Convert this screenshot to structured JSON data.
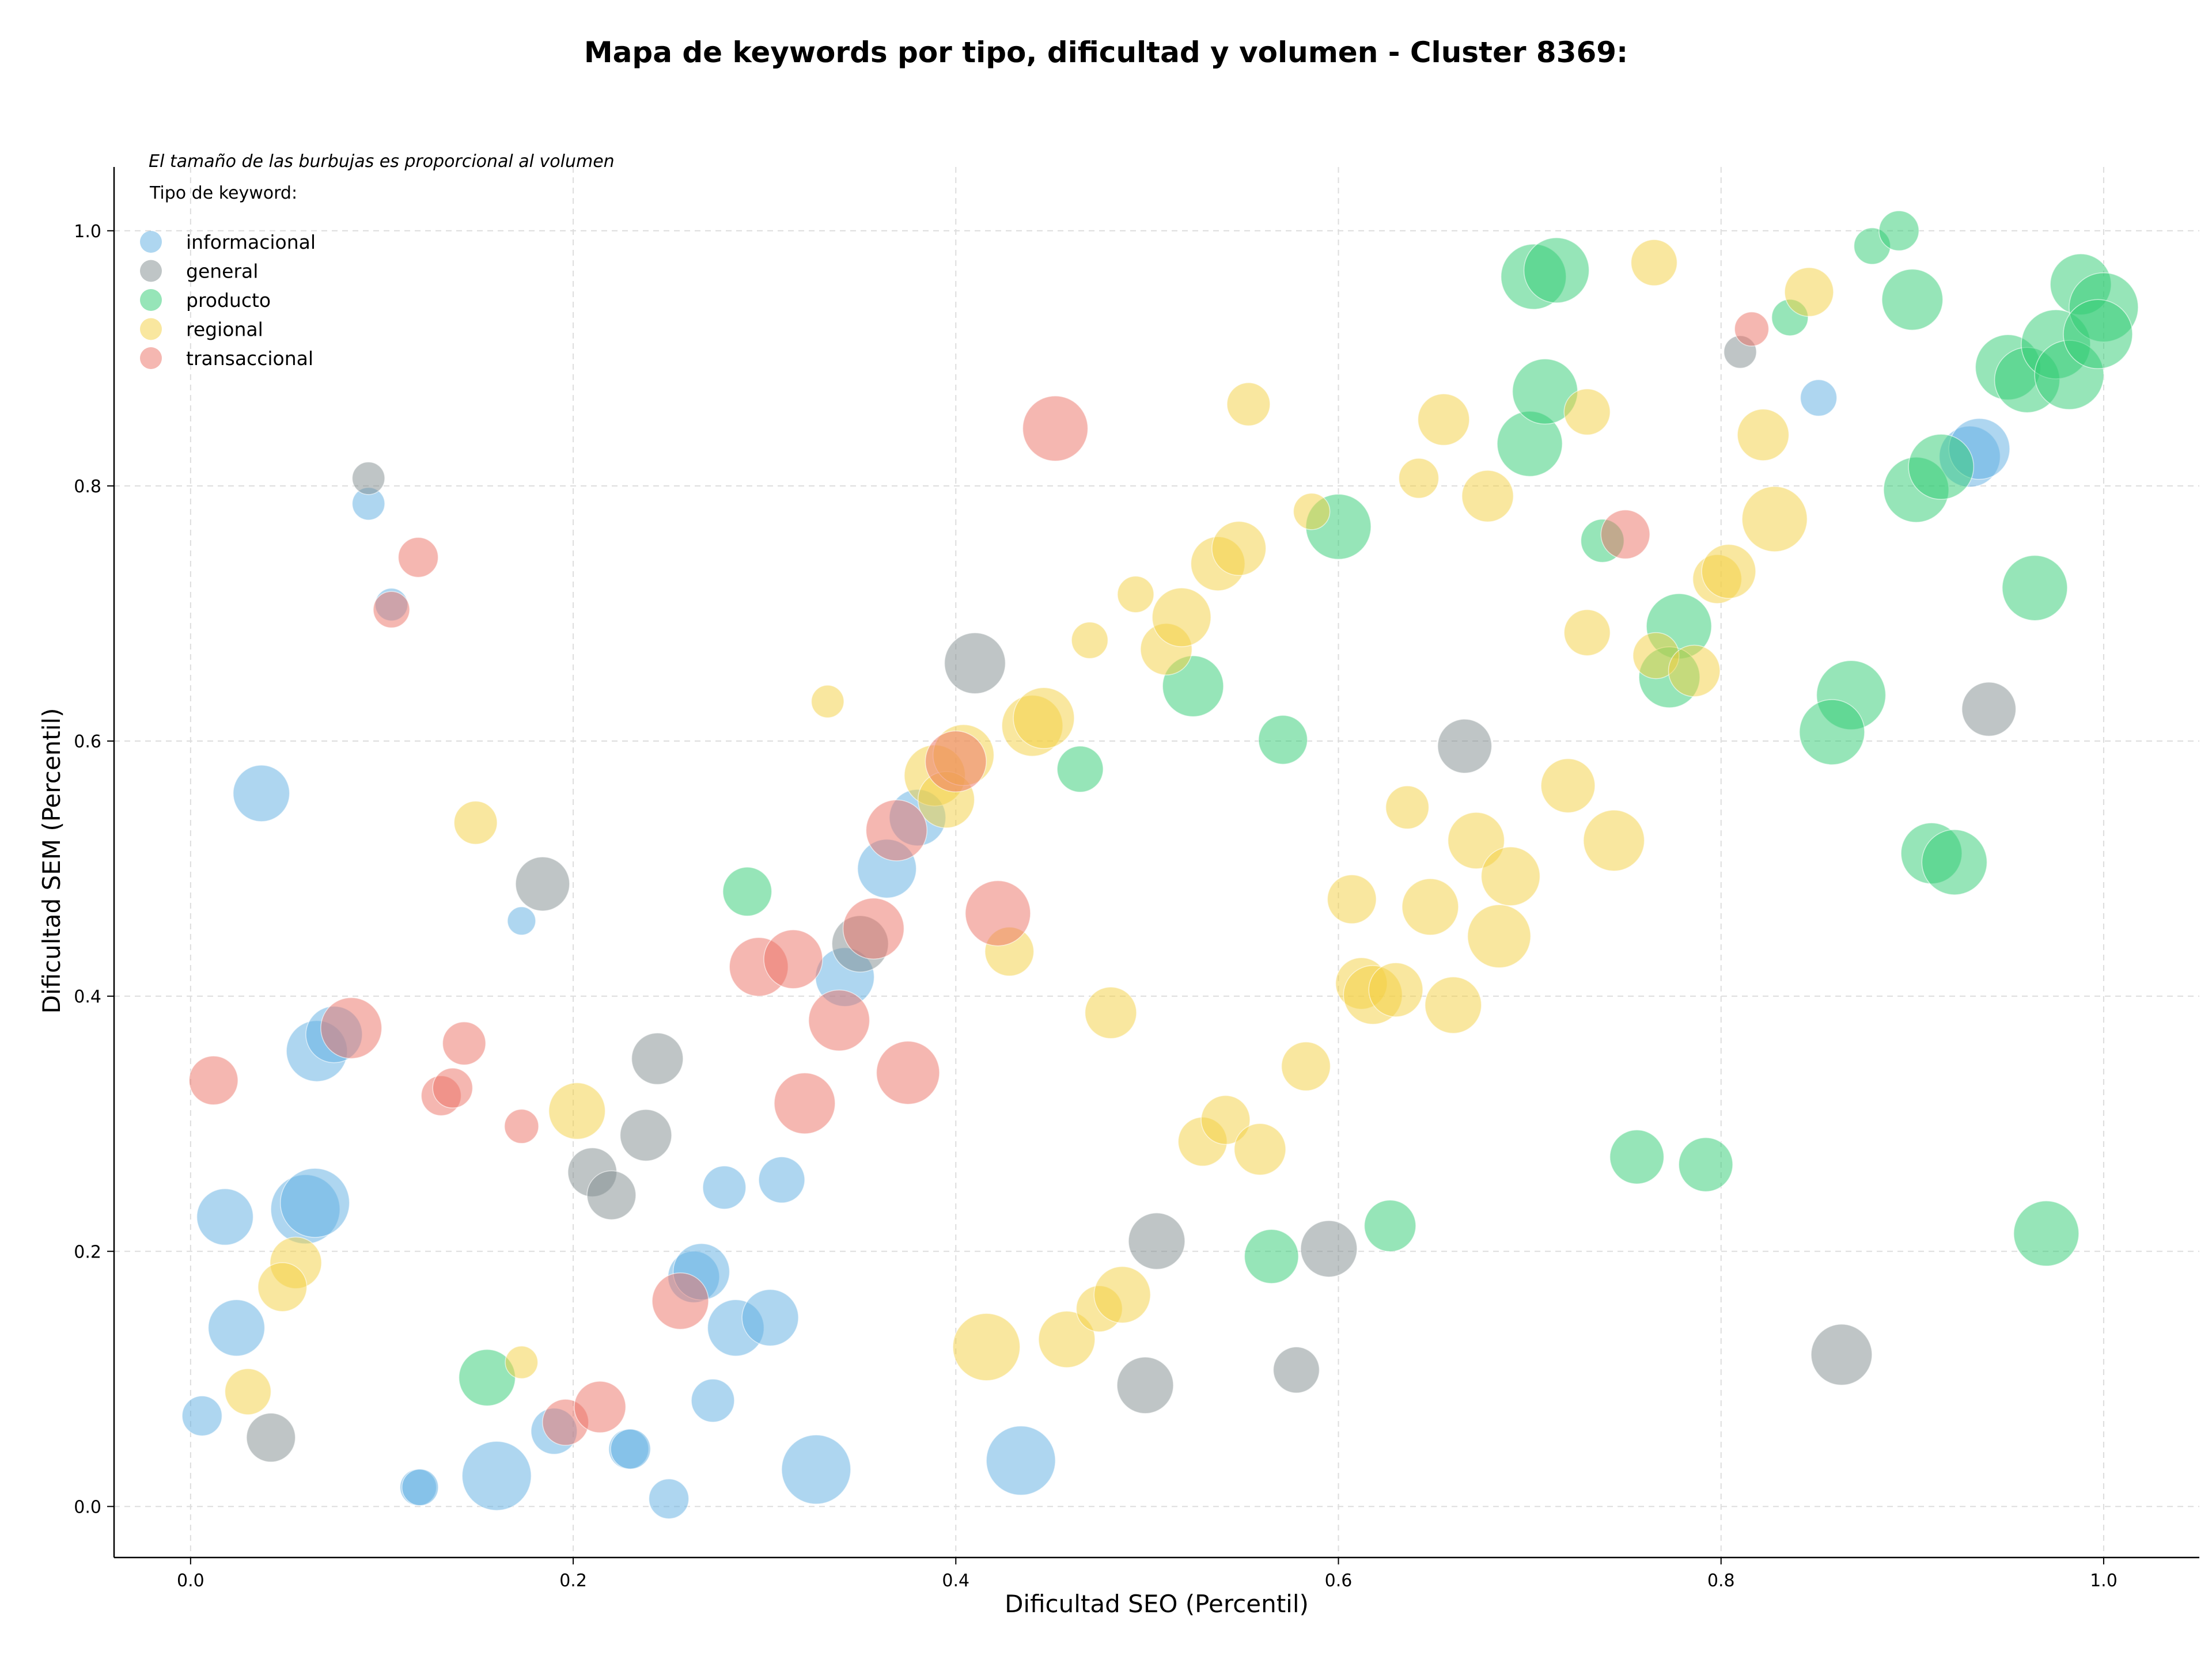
{
  "chart_data": {
    "type": "scatter",
    "title": "Mapa de keywords por tipo, dificultad y volumen - Cluster 8369:",
    "xlabel": "Dificultad SEO (Percentil)",
    "ylabel": "Dificultad SEM (Percentil)",
    "xlim": [
      -0.04,
      1.05
    ],
    "ylim": [
      -0.04,
      1.05
    ],
    "xticks": [
      "0.0",
      "0.2",
      "0.4",
      "0.6",
      "0.8",
      "1.0"
    ],
    "yticks": [
      "0.0",
      "0.2",
      "0.4",
      "0.6",
      "0.8",
      "1.0"
    ],
    "grid": true,
    "grid_style": "dashed",
    "note": "El tamaño de las burbujas es proporcional al volumen",
    "legend_title": "Tipo de keyword:",
    "legend_position": "top-left",
    "size_encoding": "volumen (relative bubble size 1-10)",
    "series": [
      {
        "name": "informacional",
        "color": "#5DADE2",
        "points": [
          {
            "x": 0.037,
            "y": 0.559,
            "s": 6
          },
          {
            "x": 0.093,
            "y": 0.786,
            "s": 2
          },
          {
            "x": 0.105,
            "y": 0.707,
            "s": 2
          },
          {
            "x": 0.173,
            "y": 0.459,
            "s": 1.5
          },
          {
            "x": 0.066,
            "y": 0.357,
            "s": 7
          },
          {
            "x": 0.075,
            "y": 0.37,
            "s": 6
          },
          {
            "x": 0.018,
            "y": 0.227,
            "s": 6
          },
          {
            "x": 0.06,
            "y": 0.233,
            "s": 9
          },
          {
            "x": 0.065,
            "y": 0.238,
            "s": 9
          },
          {
            "x": 0.024,
            "y": 0.14,
            "s": 6
          },
          {
            "x": 0.006,
            "y": 0.071,
            "s": 3
          },
          {
            "x": 0.119,
            "y": 0.015,
            "s": 2.5
          },
          {
            "x": 0.12,
            "y": 0.015,
            "s": 2.5
          },
          {
            "x": 0.16,
            "y": 0.024,
            "s": 9
          },
          {
            "x": 0.19,
            "y": 0.059,
            "s": 4
          },
          {
            "x": 0.229,
            "y": 0.045,
            "s": 3
          },
          {
            "x": 0.23,
            "y": 0.045,
            "s": 3
          },
          {
            "x": 0.25,
            "y": 0.006,
            "s": 3
          },
          {
            "x": 0.273,
            "y": 0.083,
            "s": 3.5
          },
          {
            "x": 0.279,
            "y": 0.25,
            "s": 3.5
          },
          {
            "x": 0.309,
            "y": 0.256,
            "s": 4
          },
          {
            "x": 0.263,
            "y": 0.18,
            "s": 5
          },
          {
            "x": 0.267,
            "y": 0.184,
            "s": 6
          },
          {
            "x": 0.285,
            "y": 0.14,
            "s": 6
          },
          {
            "x": 0.303,
            "y": 0.148,
            "s": 6
          },
          {
            "x": 0.327,
            "y": 0.029,
            "s": 9
          },
          {
            "x": 0.434,
            "y": 0.036,
            "s": 9
          },
          {
            "x": 0.342,
            "y": 0.415,
            "s": 6.5
          },
          {
            "x": 0.364,
            "y": 0.5,
            "s": 6.5
          },
          {
            "x": 0.38,
            "y": 0.54,
            "s": 6
          },
          {
            "x": 0.851,
            "y": 0.869,
            "s": 2.5
          },
          {
            "x": 0.93,
            "y": 0.823,
            "s": 7
          },
          {
            "x": 0.935,
            "y": 0.829,
            "s": 7
          }
        ]
      },
      {
        "name": "general",
        "color": "#7F8C8D",
        "points": [
          {
            "x": 0.093,
            "y": 0.806,
            "s": 2
          },
          {
            "x": 0.184,
            "y": 0.488,
            "s": 5.5
          },
          {
            "x": 0.244,
            "y": 0.351,
            "s": 5
          },
          {
            "x": 0.238,
            "y": 0.291,
            "s": 5
          },
          {
            "x": 0.21,
            "y": 0.262,
            "s": 4.5
          },
          {
            "x": 0.22,
            "y": 0.244,
            "s": 4.5
          },
          {
            "x": 0.042,
            "y": 0.054,
            "s": 4.5
          },
          {
            "x": 0.41,
            "y": 0.661,
            "s": 7
          },
          {
            "x": 0.35,
            "y": 0.441,
            "s": 6
          },
          {
            "x": 0.505,
            "y": 0.208,
            "s": 6
          },
          {
            "x": 0.499,
            "y": 0.095,
            "s": 6
          },
          {
            "x": 0.578,
            "y": 0.107,
            "s": 4
          },
          {
            "x": 0.595,
            "y": 0.202,
            "s": 6
          },
          {
            "x": 0.666,
            "y": 0.596,
            "s": 5.5
          },
          {
            "x": 0.81,
            "y": 0.905,
            "s": 2
          },
          {
            "x": 0.94,
            "y": 0.625,
            "s": 5.5
          },
          {
            "x": 0.863,
            "y": 0.119,
            "s": 7
          }
        ]
      },
      {
        "name": "producto",
        "color": "#2ECC71",
        "points": [
          {
            "x": 0.291,
            "y": 0.482,
            "s": 4.5
          },
          {
            "x": 0.155,
            "y": 0.101,
            "s": 6
          },
          {
            "x": 0.465,
            "y": 0.578,
            "s": 4
          },
          {
            "x": 0.524,
            "y": 0.643,
            "s": 7
          },
          {
            "x": 0.571,
            "y": 0.601,
            "s": 4.5
          },
          {
            "x": 0.6,
            "y": 0.768,
            "s": 8
          },
          {
            "x": 0.627,
            "y": 0.22,
            "s": 5
          },
          {
            "x": 0.565,
            "y": 0.196,
            "s": 5.5
          },
          {
            "x": 0.7,
            "y": 0.833,
            "s": 8
          },
          {
            "x": 0.708,
            "y": 0.874,
            "s": 8
          },
          {
            "x": 0.702,
            "y": 0.964,
            "s": 8
          },
          {
            "x": 0.714,
            "y": 0.969,
            "s": 8
          },
          {
            "x": 0.738,
            "y": 0.757,
            "s": 3.5
          },
          {
            "x": 0.778,
            "y": 0.69,
            "s": 8
          },
          {
            "x": 0.773,
            "y": 0.65,
            "s": 7
          },
          {
            "x": 0.756,
            "y": 0.274,
            "s": 5.5
          },
          {
            "x": 0.792,
            "y": 0.268,
            "s": 5.5
          },
          {
            "x": 0.836,
            "y": 0.932,
            "s": 2.5
          },
          {
            "x": 0.879,
            "y": 0.988,
            "s": 2.5
          },
          {
            "x": 0.893,
            "y": 1.0,
            "s": 3
          },
          {
            "x": 0.9,
            "y": 0.946,
            "s": 7
          },
          {
            "x": 0.868,
            "y": 0.636,
            "s": 9
          },
          {
            "x": 0.858,
            "y": 0.607,
            "s": 8
          },
          {
            "x": 0.902,
            "y": 0.797,
            "s": 8
          },
          {
            "x": 0.915,
            "y": 0.815,
            "s": 8
          },
          {
            "x": 0.91,
            "y": 0.512,
            "s": 7
          },
          {
            "x": 0.922,
            "y": 0.505,
            "s": 8
          },
          {
            "x": 0.95,
            "y": 0.893,
            "s": 8
          },
          {
            "x": 0.96,
            "y": 0.883,
            "s": 8
          },
          {
            "x": 0.988,
            "y": 0.958,
            "s": 7
          },
          {
            "x": 0.975,
            "y": 0.911,
            "s": 9
          },
          {
            "x": 0.982,
            "y": 0.887,
            "s": 9
          },
          {
            "x": 1.0,
            "y": 0.94,
            "s": 9
          },
          {
            "x": 0.997,
            "y": 0.919,
            "s": 9
          },
          {
            "x": 0.964,
            "y": 0.72,
            "s": 8
          },
          {
            "x": 0.97,
            "y": 0.214,
            "s": 8
          }
        ]
      },
      {
        "name": "regional",
        "color": "#F4D03F",
        "points": [
          {
            "x": 0.149,
            "y": 0.536,
            "s": 3.5
          },
          {
            "x": 0.055,
            "y": 0.191,
            "s": 5
          },
          {
            "x": 0.048,
            "y": 0.172,
            "s": 4.5
          },
          {
            "x": 0.03,
            "y": 0.09,
            "s": 4
          },
          {
            "x": 0.173,
            "y": 0.113,
            "s": 2
          },
          {
            "x": 0.202,
            "y": 0.31,
            "s": 6
          },
          {
            "x": 0.333,
            "y": 0.631,
            "s": 2
          },
          {
            "x": 0.389,
            "y": 0.573,
            "s": 7
          },
          {
            "x": 0.395,
            "y": 0.554,
            "s": 6
          },
          {
            "x": 0.404,
            "y": 0.589,
            "s": 7
          },
          {
            "x": 0.44,
            "y": 0.612,
            "s": 7
          },
          {
            "x": 0.446,
            "y": 0.618,
            "s": 7
          },
          {
            "x": 0.428,
            "y": 0.435,
            "s": 4.5
          },
          {
            "x": 0.47,
            "y": 0.679,
            "s": 2.5
          },
          {
            "x": 0.494,
            "y": 0.715,
            "s": 2.5
          },
          {
            "x": 0.481,
            "y": 0.387,
            "s": 5
          },
          {
            "x": 0.51,
            "y": 0.672,
            "s": 5
          },
          {
            "x": 0.518,
            "y": 0.697,
            "s": 6.5
          },
          {
            "x": 0.537,
            "y": 0.739,
            "s": 5.5
          },
          {
            "x": 0.548,
            "y": 0.751,
            "s": 5.5
          },
          {
            "x": 0.553,
            "y": 0.864,
            "s": 3.5
          },
          {
            "x": 0.586,
            "y": 0.78,
            "s": 2.5
          },
          {
            "x": 0.416,
            "y": 0.125,
            "s": 8.5
          },
          {
            "x": 0.458,
            "y": 0.131,
            "s": 6
          },
          {
            "x": 0.475,
            "y": 0.155,
            "s": 4
          },
          {
            "x": 0.487,
            "y": 0.166,
            "s": 6
          },
          {
            "x": 0.529,
            "y": 0.286,
            "s": 4.5
          },
          {
            "x": 0.541,
            "y": 0.303,
            "s": 4.5
          },
          {
            "x": 0.559,
            "y": 0.28,
            "s": 5
          },
          {
            "x": 0.583,
            "y": 0.345,
            "s": 4.5
          },
          {
            "x": 0.607,
            "y": 0.476,
            "s": 4.5
          },
          {
            "x": 0.612,
            "y": 0.41,
            "s": 5
          },
          {
            "x": 0.618,
            "y": 0.401,
            "s": 6.5
          },
          {
            "x": 0.63,
            "y": 0.405,
            "s": 5.5
          },
          {
            "x": 0.636,
            "y": 0.548,
            "s": 3.5
          },
          {
            "x": 0.642,
            "y": 0.806,
            "s": 3
          },
          {
            "x": 0.648,
            "y": 0.47,
            "s": 6
          },
          {
            "x": 0.655,
            "y": 0.852,
            "s": 5
          },
          {
            "x": 0.66,
            "y": 0.393,
            "s": 6
          },
          {
            "x": 0.672,
            "y": 0.522,
            "s": 6
          },
          {
            "x": 0.678,
            "y": 0.792,
            "s": 5
          },
          {
            "x": 0.684,
            "y": 0.447,
            "s": 7.5
          },
          {
            "x": 0.69,
            "y": 0.494,
            "s": 6.5
          },
          {
            "x": 0.72,
            "y": 0.565,
            "s": 5.5
          },
          {
            "x": 0.73,
            "y": 0.858,
            "s": 4
          },
          {
            "x": 0.73,
            "y": 0.685,
            "s": 4
          },
          {
            "x": 0.744,
            "y": 0.522,
            "s": 7
          },
          {
            "x": 0.765,
            "y": 0.975,
            "s": 4
          },
          {
            "x": 0.766,
            "y": 0.667,
            "s": 4
          },
          {
            "x": 0.786,
            "y": 0.655,
            "s": 5
          },
          {
            "x": 0.798,
            "y": 0.727,
            "s": 4.5
          },
          {
            "x": 0.804,
            "y": 0.733,
            "s": 5.5
          },
          {
            "x": 0.822,
            "y": 0.84,
            "s": 5
          },
          {
            "x": 0.828,
            "y": 0.774,
            "s": 8
          },
          {
            "x": 0.846,
            "y": 0.952,
            "s": 4.5
          }
        ]
      },
      {
        "name": "transaccional",
        "color": "#EC7063",
        "points": [
          {
            "x": 0.119,
            "y": 0.744,
            "s": 3
          },
          {
            "x": 0.105,
            "y": 0.703,
            "s": 2.5
          },
          {
            "x": 0.084,
            "y": 0.375,
            "s": 7
          },
          {
            "x": 0.012,
            "y": 0.334,
            "s": 4.5
          },
          {
            "x": 0.143,
            "y": 0.363,
            "s": 3.5
          },
          {
            "x": 0.131,
            "y": 0.322,
            "s": 3
          },
          {
            "x": 0.137,
            "y": 0.328,
            "s": 3
          },
          {
            "x": 0.173,
            "y": 0.298,
            "s": 2.2
          },
          {
            "x": 0.196,
            "y": 0.066,
            "s": 4
          },
          {
            "x": 0.214,
            "y": 0.078,
            "s": 5
          },
          {
            "x": 0.256,
            "y": 0.161,
            "s": 6
          },
          {
            "x": 0.297,
            "y": 0.423,
            "s": 6.5
          },
          {
            "x": 0.315,
            "y": 0.429,
            "s": 6.5
          },
          {
            "x": 0.321,
            "y": 0.316,
            "s": 7
          },
          {
            "x": 0.339,
            "y": 0.381,
            "s": 7
          },
          {
            "x": 0.357,
            "y": 0.453,
            "s": 7
          },
          {
            "x": 0.369,
            "y": 0.53,
            "s": 7
          },
          {
            "x": 0.375,
            "y": 0.34,
            "s": 7.5
          },
          {
            "x": 0.4,
            "y": 0.584,
            "s": 7
          },
          {
            "x": 0.422,
            "y": 0.465,
            "s": 8
          },
          {
            "x": 0.452,
            "y": 0.845,
            "s": 8
          },
          {
            "x": 0.75,
            "y": 0.762,
            "s": 4.5
          },
          {
            "x": 0.816,
            "y": 0.923,
            "s": 2.2
          }
        ]
      }
    ]
  }
}
